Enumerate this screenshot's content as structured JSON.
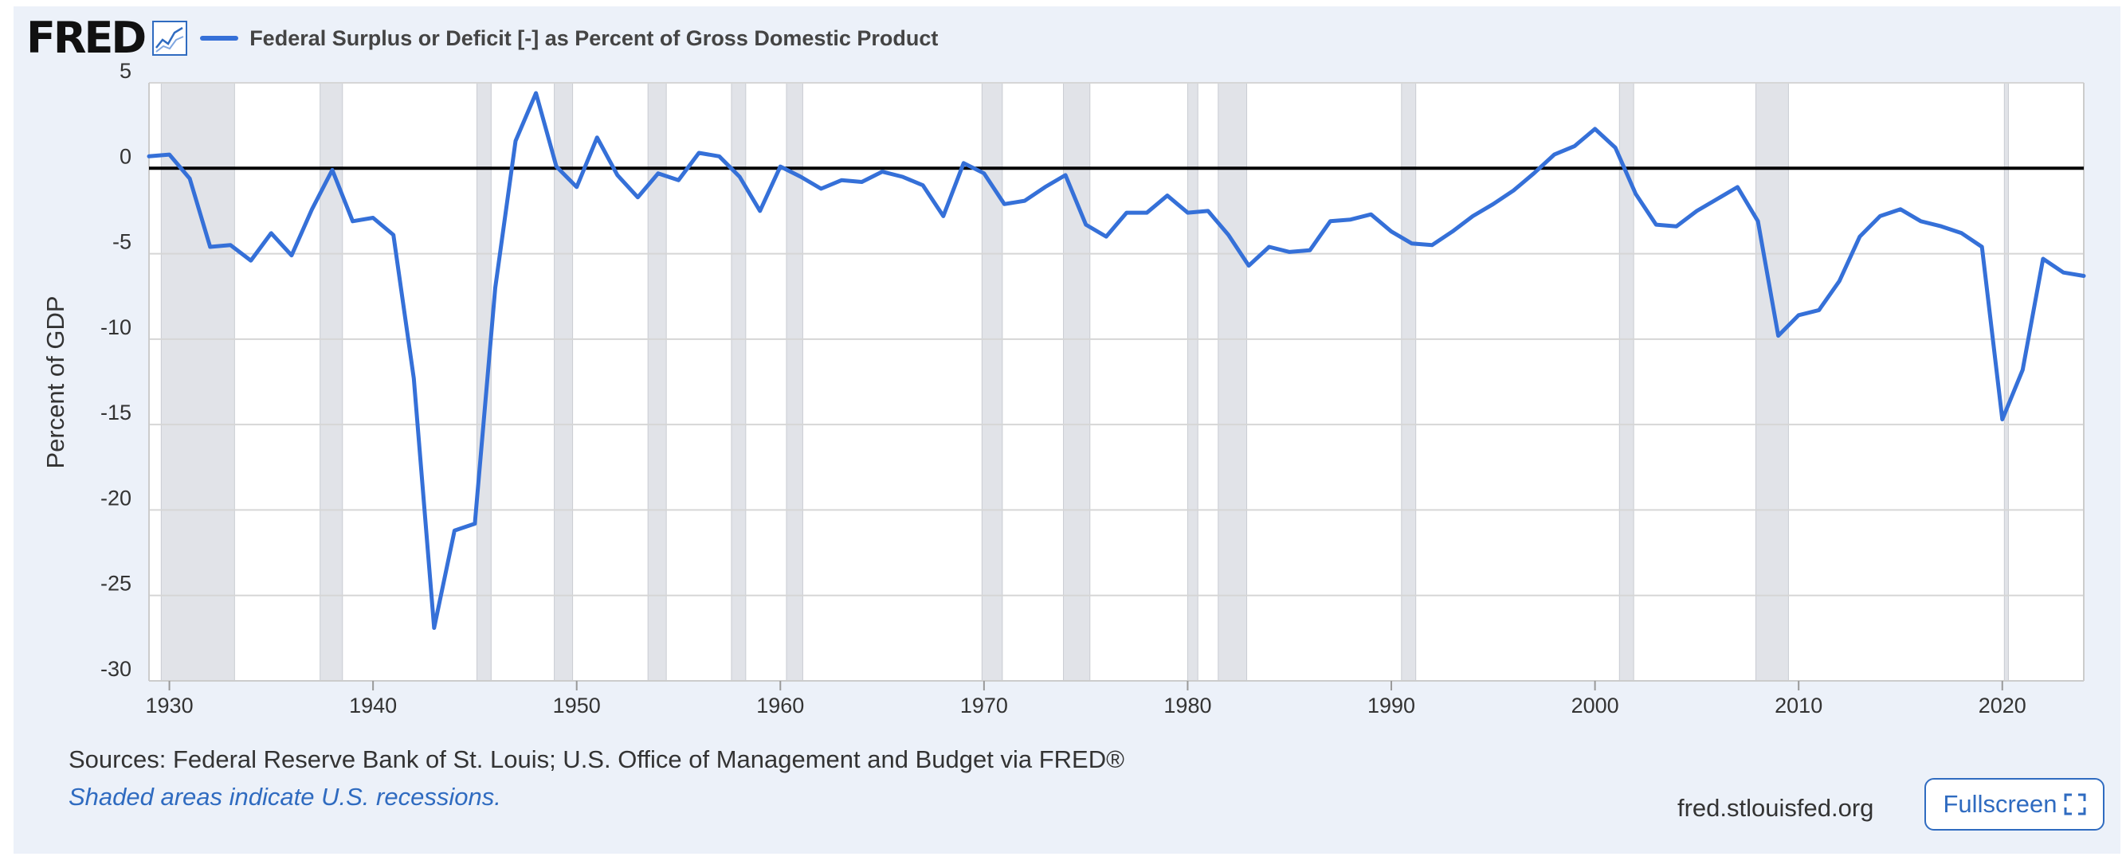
{
  "header": {
    "logo_text": "FRED",
    "legend_label": "Federal Surplus or Deficit [-] as Percent of Gross Domestic Product"
  },
  "footer": {
    "source": "Sources: Federal Reserve Bank of St. Louis; U.S. Office of Management and Budget via FRED®",
    "note": "Shaded areas indicate U.S. recessions.",
    "site": "fred.stlouisfed.org",
    "fullscreen_label": "Fullscreen"
  },
  "colors": {
    "series": "#3570d8",
    "recession_shade": "#e1e3e8",
    "grid": "#d6d6d6",
    "zero_line": "#000000",
    "panel": "#ecf1f9",
    "link": "#2f6bc0"
  },
  "icons": {
    "logo_icon": "line-chart-icon",
    "fullscreen_icon": "expand-icon"
  },
  "chart_data": {
    "type": "line",
    "title": "Federal Surplus or Deficit [-] as Percent of Gross Domestic Product",
    "xlabel": "",
    "ylabel": "Percent of GDP",
    "xlim": [
      1929,
      2024
    ],
    "ylim": [
      -30,
      5
    ],
    "xticks": [
      1930,
      1940,
      1950,
      1960,
      1970,
      1980,
      1990,
      2000,
      2010,
      2020
    ],
    "yticks": [
      5,
      0,
      -5,
      -10,
      -15,
      -20,
      -25,
      -30
    ],
    "grid": true,
    "legend": "top-left",
    "recessions": [
      [
        1929.6,
        1933.2
      ],
      [
        1937.4,
        1938.5
      ],
      [
        1945.1,
        1945.8
      ],
      [
        1948.9,
        1949.8
      ],
      [
        1953.5,
        1954.4
      ],
      [
        1957.6,
        1958.3
      ],
      [
        1960.3,
        1961.1
      ],
      [
        1969.9,
        1970.9
      ],
      [
        1973.9,
        1975.2
      ],
      [
        1980.0,
        1980.5
      ],
      [
        1981.5,
        1982.9
      ],
      [
        1990.5,
        1991.2
      ],
      [
        2001.2,
        2001.9
      ],
      [
        2007.9,
        2009.5
      ],
      [
        2020.1,
        2020.3
      ]
    ],
    "series": [
      {
        "name": "Federal Surplus or Deficit [-] as Percent of Gross Domestic Product",
        "x": [
          1929,
          1930,
          1931,
          1932,
          1933,
          1934,
          1935,
          1936,
          1937,
          1938,
          1939,
          1940,
          1941,
          1942,
          1943,
          1944,
          1945,
          1946,
          1947,
          1948,
          1949,
          1950,
          1951,
          1952,
          1953,
          1954,
          1955,
          1956,
          1957,
          1958,
          1959,
          1960,
          1961,
          1962,
          1963,
          1964,
          1965,
          1966,
          1967,
          1968,
          1969,
          1970,
          1971,
          1972,
          1973,
          1974,
          1975,
          1976,
          1977,
          1978,
          1979,
          1980,
          1981,
          1982,
          1983,
          1984,
          1985,
          1986,
          1987,
          1988,
          1989,
          1990,
          1991,
          1992,
          1993,
          1994,
          1995,
          1996,
          1997,
          1998,
          1999,
          2000,
          2001,
          2002,
          2003,
          2004,
          2005,
          2006,
          2007,
          2008,
          2009,
          2010,
          2011,
          2012,
          2013,
          2014,
          2015,
          2016,
          2017,
          2018,
          2019,
          2020,
          2021,
          2022,
          2023,
          2024
        ],
        "values": [
          0.7,
          0.8,
          -0.6,
          -4.6,
          -4.5,
          -5.4,
          -3.8,
          -5.1,
          -2.4,
          -0.1,
          -3.1,
          -2.9,
          -3.9,
          -12.3,
          -26.9,
          -21.2,
          -20.8,
          -7.0,
          1.6,
          4.4,
          0.1,
          -1.1,
          1.8,
          -0.4,
          -1.7,
          -0.3,
          -0.7,
          0.9,
          0.7,
          -0.5,
          -2.5,
          0.1,
          -0.5,
          -1.2,
          -0.7,
          -0.8,
          -0.2,
          -0.5,
          -1.0,
          -2.8,
          0.3,
          -0.3,
          -2.1,
          -1.9,
          -1.1,
          -0.4,
          -3.3,
          -4.0,
          -2.6,
          -2.6,
          -1.6,
          -2.6,
          -2.5,
          -3.9,
          -5.7,
          -4.6,
          -4.9,
          -4.8,
          -3.1,
          -3.0,
          -2.7,
          -3.7,
          -4.4,
          -4.5,
          -3.7,
          -2.8,
          -2.1,
          -1.3,
          -0.3,
          0.8,
          1.3,
          2.3,
          1.2,
          -1.5,
          -3.3,
          -3.4,
          -2.5,
          -1.8,
          -1.1,
          -3.1,
          -9.8,
          -8.6,
          -8.3,
          -6.6,
          -4.0,
          -2.8,
          -2.4,
          -3.1,
          -3.4,
          -3.8,
          -4.6,
          -14.7,
          -11.8,
          -5.3,
          -6.1,
          -6.3
        ]
      }
    ]
  }
}
